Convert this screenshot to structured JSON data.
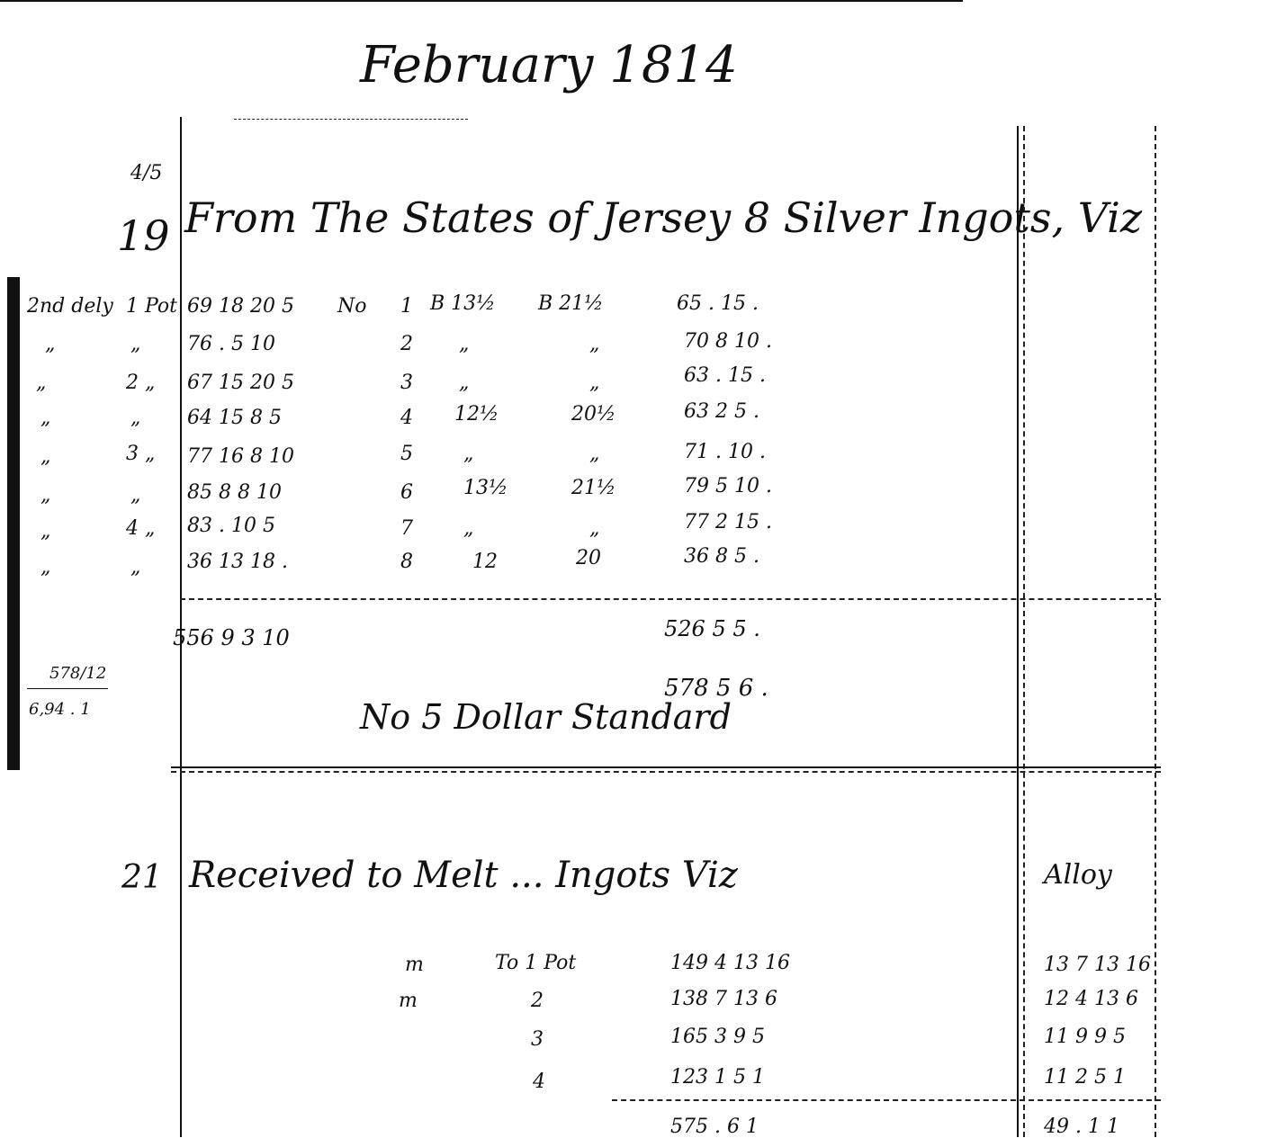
{
  "header": {
    "title": "February 1814"
  },
  "entry1": {
    "day": "19",
    "day_note": "4/5",
    "heading": "From The States of Jersey  8 Silver Ingots, Viz",
    "margin_note": "2nd dely. ff.",
    "columns": {
      "number_label": "No"
    },
    "rows": [
      {
        "note": "2nd dely",
        "pot": "1 Pot",
        "weight": "69 18 20 5",
        "no": "1",
        "fine": "B 13½",
        "worse": "B 21½",
        "value": "65 . 15 ."
      },
      {
        "note": "„",
        "pot": "„",
        "weight": "76 . 5 10",
        "no": "2",
        "fine": "„",
        "worse": "„",
        "value": "70 8 10 ."
      },
      {
        "note": "„",
        "pot": "2 „",
        "weight": "67 15 20 5",
        "no": "3",
        "fine": "„",
        "worse": "„",
        "value": "63 . 15 ."
      },
      {
        "note": "„",
        "pot": "„",
        "weight": "64 15 8 5",
        "no": "4",
        "fine": "12½",
        "worse": "20½",
        "value": "63 2 5 ."
      },
      {
        "note": "„",
        "pot": "3 „",
        "weight": "77 16 8 10",
        "no": "5",
        "fine": "„",
        "worse": "„",
        "value": "71 . 10 ."
      },
      {
        "note": "„",
        "pot": "„",
        "weight": "85 8 8 10",
        "no": "6",
        "fine": "13½",
        "worse": "21½",
        "value": "79 5 10 ."
      },
      {
        "note": "„",
        "pot": "4 „",
        "weight": "83 . 10 5",
        "no": "7",
        "fine": "„",
        "worse": "„",
        "value": "77 2 15 ."
      },
      {
        "note": "„",
        "pot": "„",
        "weight": "36 13 18 .",
        "no": "8",
        "fine": "12",
        "worse": "20",
        "value": "36 8 5 ."
      }
    ],
    "total_weight": "556 9 3 10",
    "total_value": "526 5 5 .",
    "standard_value": "578 5 6 .",
    "standard_label": "No 5 Dollar Standard",
    "side_calc_top": "578/12",
    "side_calc_bottom": "6,94 . 1"
  },
  "entry2": {
    "day": "21",
    "heading": "Received to Melt ... Ingots Viz",
    "alloy_label": "Alloy",
    "rows": [
      {
        "mark": "m",
        "pot": "To 1 Pot",
        "weight": "149 4 13 16",
        "alloy": "13 7 13 16"
      },
      {
        "mark": "m",
        "pot": "2",
        "weight": "138 7 13 6",
        "alloy": "12 4 13 6"
      },
      {
        "mark": "",
        "pot": "3",
        "weight": "165 3 9 5",
        "alloy": "11 9 9 5"
      },
      {
        "mark": "",
        "pot": "4",
        "weight": "123 1 5 1",
        "alloy": "11 2 5 1"
      }
    ],
    "partial_total": "575 . 6 1",
    "partial_alloy": "49 . 1 1"
  }
}
